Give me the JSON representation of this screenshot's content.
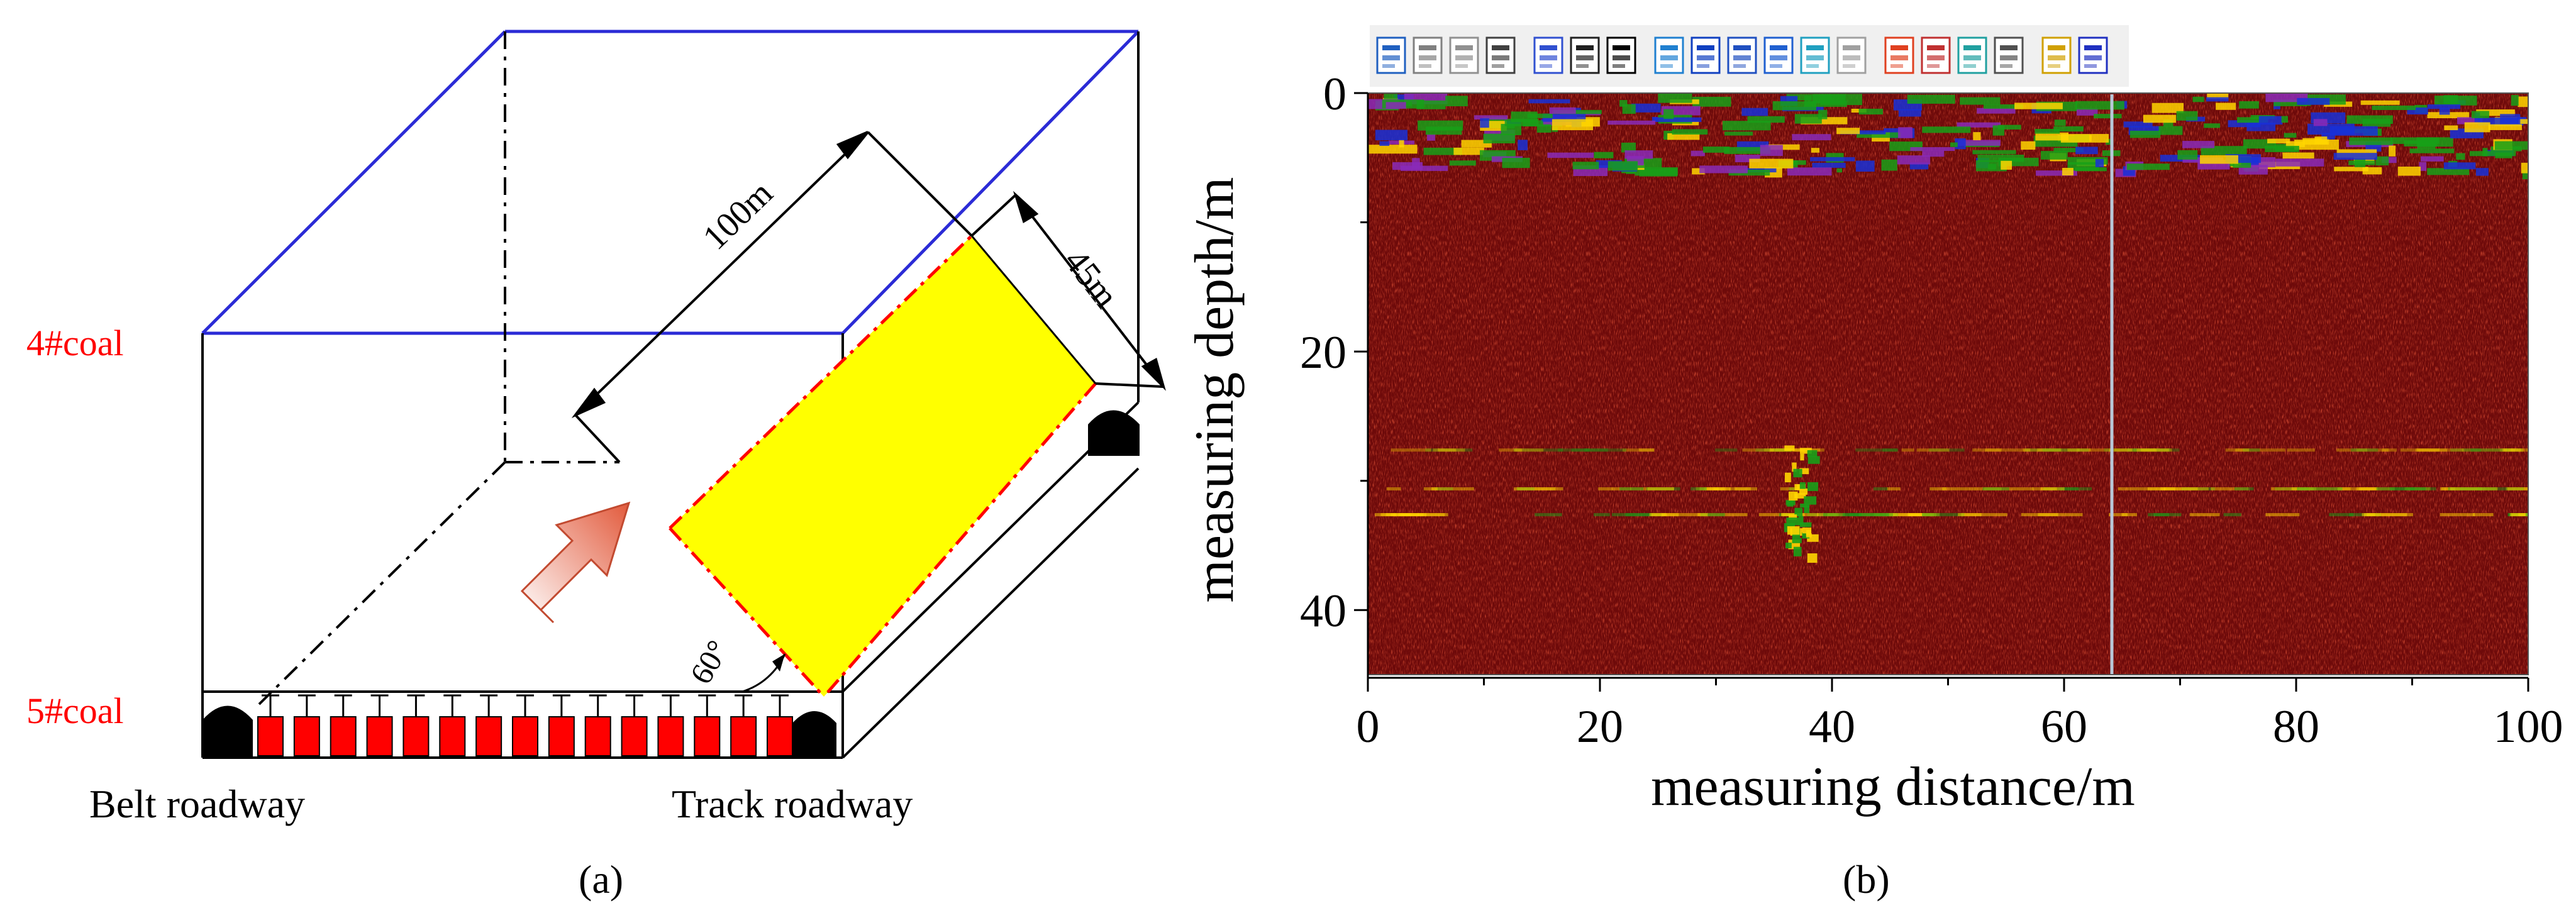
{
  "panel_a": {
    "label_4coal": "4#coal",
    "label_5coal": "5#coal",
    "dim_100m": "100m",
    "dim_45m": "45m",
    "angle": "60°",
    "belt_roadway": "Belt roadway",
    "track_roadway": "Track roadway",
    "caption": "(a)",
    "colors": {
      "top_box_lines": "#2b2bd6",
      "yellow_panel": "#ffff00",
      "red_dashed": "#ff0000",
      "coal_label": "#ff0000",
      "arrow_fill": "#f08a74"
    },
    "support_count": 15
  },
  "panel_b": {
    "toolbar_icons": [
      "new-file-icon",
      "cut-icon",
      "copy-icon",
      "paste-icon",
      "windows-icon",
      "cursor-marker-icon",
      "black-box-icon",
      "wave-display-icon",
      "wiggle-icon",
      "wave-select-icon",
      "wave-trace-icon",
      "3d-view-icon",
      "eraser-icon",
      "color-palette-icon",
      "color-wave-icon",
      "monitor-icon",
      "print-icon",
      "help-icon",
      "context-help-icon"
    ],
    "ylabel": "measuring depth/m",
    "xlabel": "measuring distance/m",
    "y_ticks": [
      "0",
      "20",
      "40"
    ],
    "x_ticks": [
      "0",
      "20",
      "40",
      "60",
      "80",
      "100"
    ],
    "caption": "(b)",
    "x_range": [
      0,
      100
    ],
    "y_range": [
      0,
      45
    ],
    "colors": {
      "background": "#6e0a0a",
      "speckle": "#d61a0a",
      "highlight": "#ffd600",
      "band_green": "#18a018",
      "band_blue": "#1830d8",
      "band_purple": "#8a2ab8",
      "cursor_line": "#b8c8d8"
    }
  }
}
